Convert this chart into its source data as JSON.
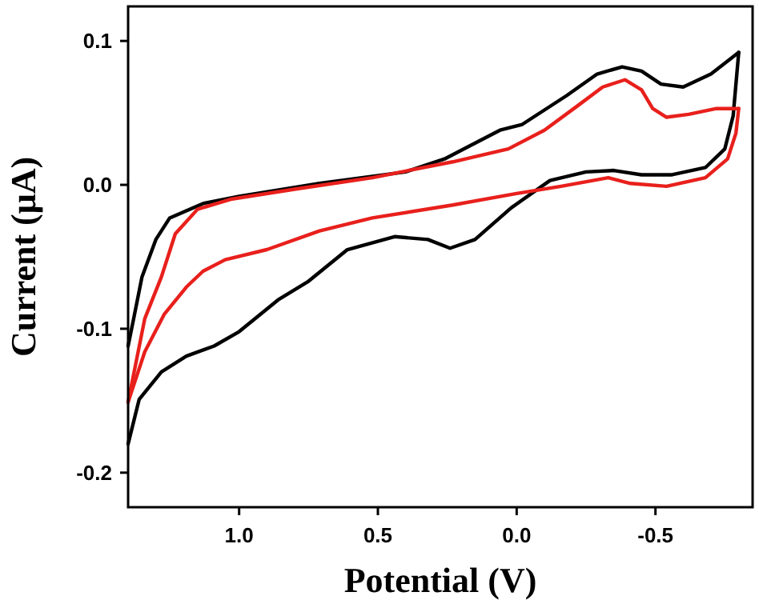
{
  "chart_data": {
    "type": "line",
    "xlabel": "Potential (V)",
    "ylabel": "Current (μA)",
    "xlim": [
      1.4,
      -0.85
    ],
    "ylim": [
      -0.224,
      0.124
    ],
    "xticks": [
      {
        "value": 1,
        "label": "1.0"
      },
      0.5,
      {
        "value": 0,
        "label": "0.0"
      },
      -0.5
    ],
    "yticks": [
      0.1,
      {
        "value": 0,
        "label": "0.0"
      },
      -0.1,
      -0.2
    ],
    "line_style": "solid",
    "series": [
      {
        "color": "#000000",
        "x": [
          -0.8,
          -0.7,
          -0.6,
          -0.52,
          -0.45,
          -0.38,
          -0.29,
          -0.18,
          -0.02,
          0.06,
          0.17,
          0.26,
          0.4,
          0.71,
          1.0,
          1.13,
          1.25,
          1.3,
          1.35,
          1.38,
          1.4
        ],
        "values": [
          0.092,
          0.077,
          0.068,
          0.07,
          0.079,
          0.082,
          0.077,
          0.062,
          0.042,
          0.038,
          0.027,
          0.018,
          0.009,
          0.001,
          -0.008,
          -0.013,
          -0.023,
          -0.038,
          -0.064,
          -0.093,
          -0.112
        ]
      },
      {
        "color": "#000000",
        "x": [
          -0.8,
          -0.78,
          -0.75,
          -0.68,
          -0.56,
          -0.45,
          -0.35,
          -0.25,
          -0.12,
          0.02,
          0.15,
          0.24,
          0.32,
          0.44,
          0.61,
          0.75,
          0.86,
          1.0,
          1.09,
          1.19,
          1.28,
          1.36,
          1.4
        ],
        "values": [
          0.092,
          0.048,
          0.025,
          0.012,
          0.007,
          0.007,
          0.01,
          0.009,
          0.003,
          -0.016,
          -0.038,
          -0.044,
          -0.038,
          -0.036,
          -0.045,
          -0.067,
          -0.08,
          -0.102,
          -0.112,
          -0.119,
          -0.13,
          -0.149,
          -0.18
        ]
      },
      {
        "color": "#e8201c",
        "x": [
          -0.8,
          -0.72,
          -0.62,
          -0.54,
          -0.49,
          -0.45,
          -0.39,
          -0.31,
          -0.22,
          -0.1,
          0.03,
          0.23,
          0.52,
          0.8,
          1.03,
          1.15,
          1.23,
          1.28,
          1.34,
          1.4
        ],
        "values": [
          0.053,
          0.053,
          0.049,
          0.047,
          0.053,
          0.066,
          0.073,
          0.068,
          0.055,
          0.038,
          0.025,
          0.016,
          0.005,
          -0.003,
          -0.01,
          -0.017,
          -0.034,
          -0.064,
          -0.093,
          -0.151
        ]
      },
      {
        "color": "#e8201c",
        "x": [
          -0.8,
          -0.79,
          -0.76,
          -0.68,
          -0.54,
          -0.41,
          -0.33,
          -0.16,
          0.0,
          0.23,
          0.52,
          0.71,
          0.9,
          1.05,
          1.13,
          1.19,
          1.27,
          1.34,
          1.4
        ],
        "values": [
          0.053,
          0.036,
          0.018,
          0.005,
          -0.001,
          0.001,
          0.005,
          -0.001,
          -0.006,
          -0.014,
          -0.023,
          -0.032,
          -0.045,
          -0.052,
          -0.06,
          -0.071,
          -0.09,
          -0.116,
          -0.151
        ]
      }
    ]
  }
}
